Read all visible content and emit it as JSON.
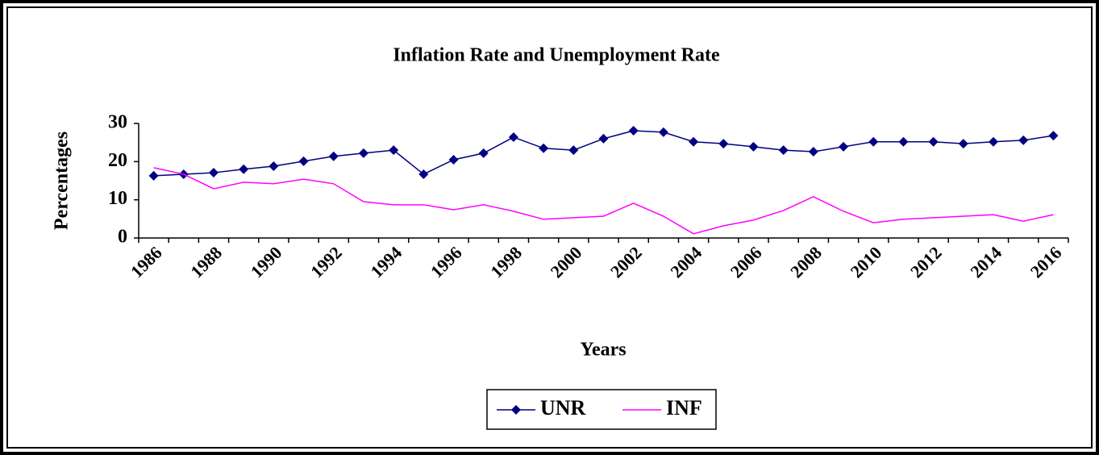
{
  "chart_data": {
    "type": "line",
    "title": "Inflation Rate and Unemployment Rate",
    "xlabel": "Years",
    "ylabel": "Percentages",
    "categories": [
      "1986",
      null,
      "1988",
      null,
      "1990",
      null,
      "1992",
      null,
      "1994",
      null,
      "1996",
      null,
      "1998",
      null,
      "2000",
      null,
      "2002",
      null,
      "2004",
      null,
      "2006",
      null,
      "2008",
      null,
      "2010",
      null,
      "2012",
      null,
      "2014",
      null,
      "2016"
    ],
    "series": [
      {
        "name": "UNR",
        "color": "#000080",
        "marker": "diamond",
        "values": [
          16.3,
          16.7,
          17.1,
          18.0,
          18.8,
          20.1,
          21.4,
          22.2,
          23.0,
          16.7,
          20.5,
          22.2,
          26.4,
          23.5,
          23.0,
          26.0,
          28.1,
          27.7,
          25.2,
          24.7,
          23.9,
          23.0,
          22.6,
          23.9,
          25.2,
          25.2,
          25.2,
          24.7,
          25.2,
          25.6,
          26.8
        ]
      },
      {
        "name": "INF",
        "color": "#ff00ff",
        "marker": null,
        "values": [
          18.4,
          16.7,
          12.9,
          14.6,
          14.2,
          15.4,
          14.2,
          9.5,
          8.7,
          8.7,
          7.4,
          8.7,
          7.0,
          4.9,
          5.3,
          5.7,
          9.1,
          5.7,
          1.1,
          3.2,
          4.7,
          7.2,
          10.8,
          7.0,
          4.0,
          4.9,
          5.3,
          5.7,
          6.1,
          4.4,
          6.1
        ]
      }
    ],
    "ylim": [
      0,
      30
    ],
    "yticks": [
      0,
      10,
      20,
      30
    ],
    "grid": false,
    "legend": "bottom"
  }
}
